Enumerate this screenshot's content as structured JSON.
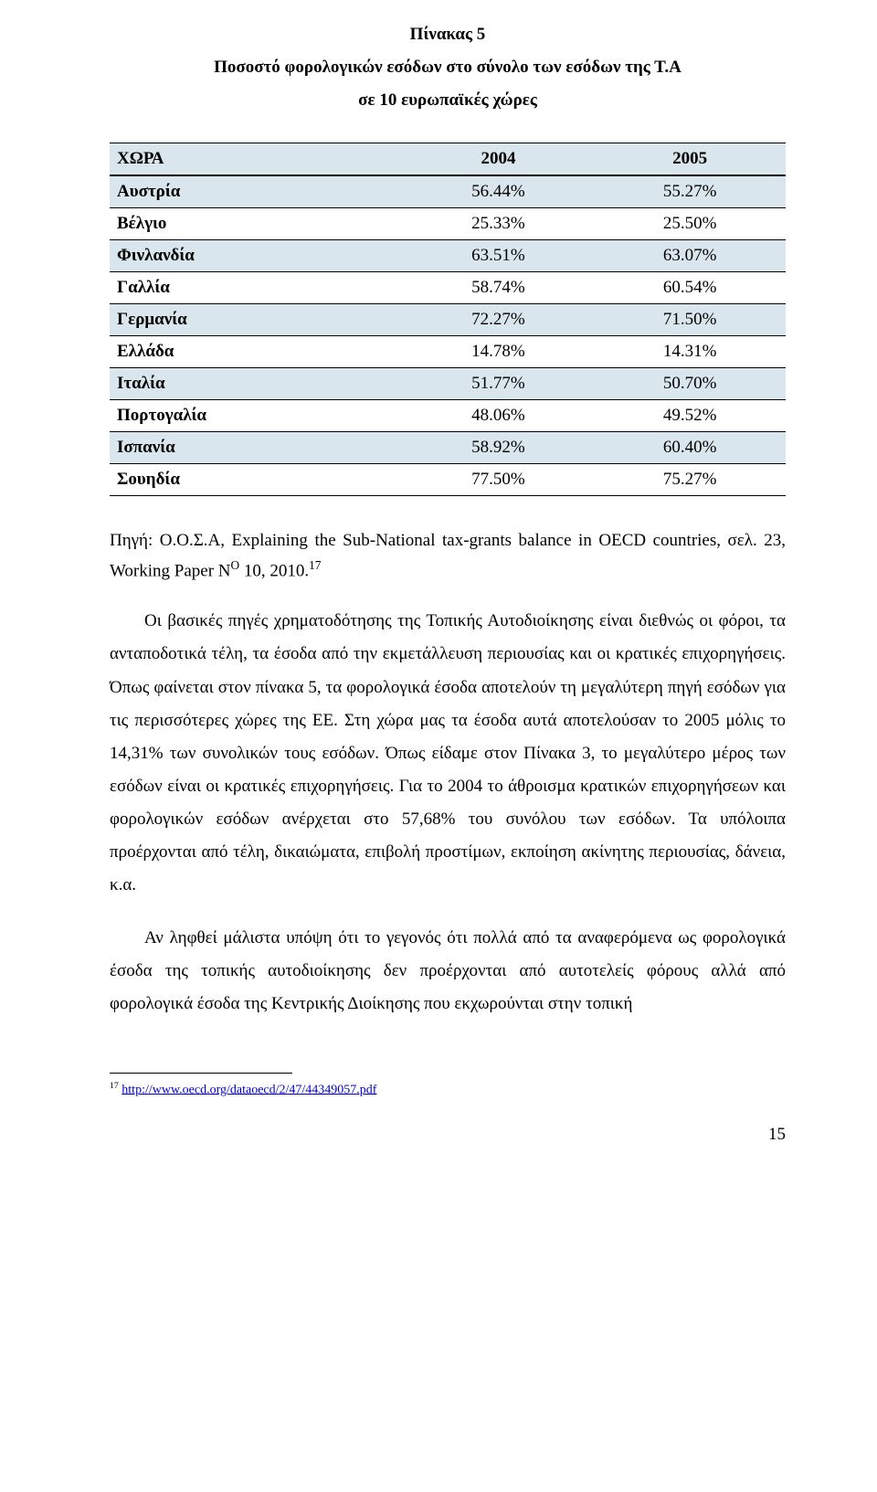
{
  "caption": {
    "line1": "Πίνακας 5",
    "line2": "Ποσοστό φορολογικών εσόδων στο σύνολο των εσόδων της Τ.Α",
    "line3": "σε 10 ευρωπαϊκές χώρες"
  },
  "table": {
    "columns": [
      "ΧΩΡΑ",
      "2004",
      "2005"
    ],
    "shaded_color": "#d9e6ed",
    "rows": [
      {
        "label": "Αυστρία",
        "c2004": "56.44%",
        "c2005": "55.27%",
        "shaded": true
      },
      {
        "label": "Βέλγιο",
        "c2004": "25.33%",
        "c2005": "25.50%",
        "shaded": false
      },
      {
        "label": "Φινλανδία",
        "c2004": "63.51%",
        "c2005": "63.07%",
        "shaded": true
      },
      {
        "label": "Γαλλία",
        "c2004": "58.74%",
        "c2005": "60.54%",
        "shaded": false
      },
      {
        "label": "Γερμανία",
        "c2004": "72.27%",
        "c2005": "71.50%",
        "shaded": true
      },
      {
        "label": "Ελλάδα",
        "c2004": "14.78%",
        "c2005": "14.31%",
        "shaded": false
      },
      {
        "label": "Ιταλία",
        "c2004": "51.77%",
        "c2005": "50.70%",
        "shaded": true
      },
      {
        "label": "Πορτογαλία",
        "c2004": "48.06%",
        "c2005": "49.52%",
        "shaded": false
      },
      {
        "label": "Ισπανία",
        "c2004": "58.92%",
        "c2005": "60.40%",
        "shaded": true
      },
      {
        "label": "Σουηδία",
        "c2004": "77.50%",
        "c2005": "75.27%",
        "shaded": false
      }
    ]
  },
  "source_text_pre": "Πηγή: Ο.Ο.Σ.Α, Explaining the Sub-National tax-grants balance in OECD countries, σελ. 23, Working Paper N",
  "source_text_sup": "O",
  "source_text_post": " 10, 2010.",
  "source_foot_ref": "17",
  "paragraph1": "Οι βασικές πηγές χρηματοδότησης της Τοπικής Αυτοδιοίκησης είναι διεθνώς οι φόροι, τα ανταποδοτικά τέλη, τα έσοδα από την εκμετάλλευση περιουσίας και οι κρατικές επιχορηγήσεις. Όπως φαίνεται στον πίνακα 5, τα φορολογικά έσοδα αποτελούν τη μεγαλύτερη πηγή εσόδων για τις περισσότερες χώρες της ΕΕ. Στη χώρα μας τα έσοδα αυτά αποτελούσαν το 2005 μόλις το 14,31% των συνολικών τους εσόδων. Όπως είδαμε στον Πίνακα 3, το μεγαλύτερο μέρος των εσόδων είναι οι κρατικές επιχορηγήσεις. Για το 2004 το άθροισμα κρατικών επιχορηγήσεων και φορολογικών εσόδων ανέρχεται στο 57,68% του συνόλου των εσόδων. Τα υπόλοιπα προέρχονται από τέλη, δικαιώματα, επιβολή προστίμων, εκποίηση ακίνητης περιουσίας, δάνεια, κ.α.",
  "paragraph2": "Αν ληφθεί μάλιστα υπόψη ότι το γεγονός ότι πολλά από τα αναφερόμενα ως φορολογικά έσοδα της τοπικής αυτοδιοίκησης δεν προέρχονται από αυτοτελείς φόρους αλλά από φορολογικά έσοδα της Κεντρικής Διοίκησης που εκχωρούνται στην τοπική",
  "footnote": {
    "ref": "17",
    "url_text": "http://www.oecd.org/dataoecd/2/47/44349057.pdf"
  },
  "page_number": "15"
}
